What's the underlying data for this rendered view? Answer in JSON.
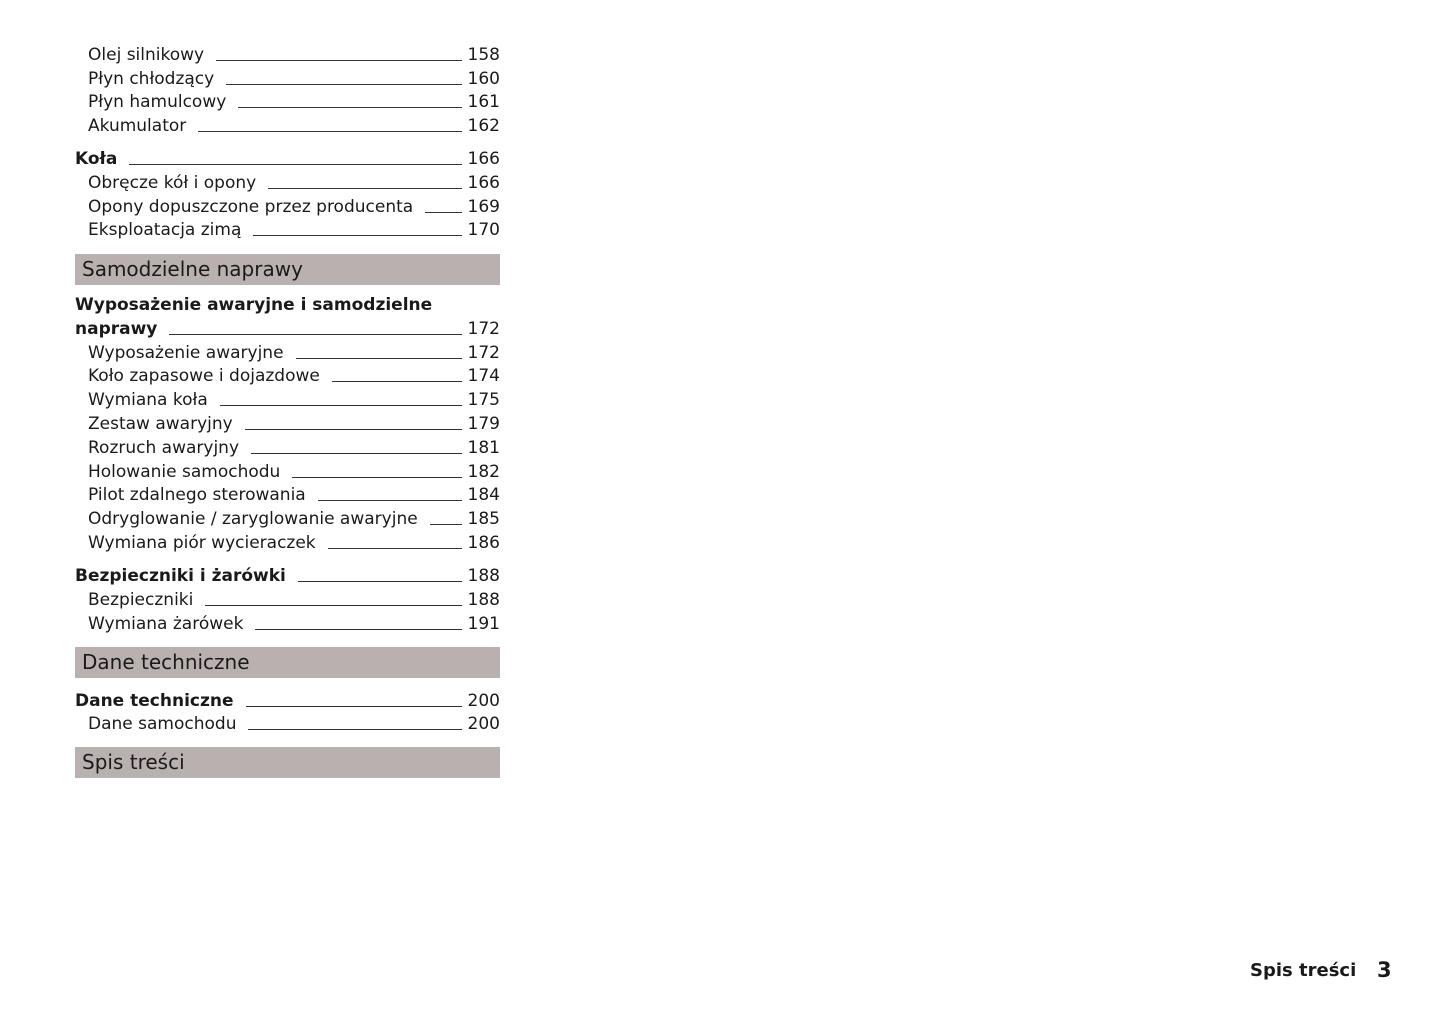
{
  "toc": {
    "e0": {
      "title": "Olej silnikowy",
      "page": "158"
    },
    "e1": {
      "title": "Płyn chłodzący",
      "page": "160"
    },
    "e2": {
      "title": "Płyn hamulcowy",
      "page": "161"
    },
    "e3": {
      "title": "Akumulator",
      "page": "162"
    },
    "e4": {
      "title": "Koła",
      "page": "166"
    },
    "e5": {
      "title": "Obręcze kół i opony",
      "page": "166"
    },
    "e6": {
      "title": "Opony dopuszczone przez producenta",
      "page": "169"
    },
    "e7": {
      "title": "Eksploatacja zimą",
      "page": "170"
    },
    "s1": "Samodzielne naprawy",
    "e8": {
      "title_line1": "Wyposażenie awaryjne i samodzielne",
      "title": "naprawy",
      "page": "172"
    },
    "e9": {
      "title": "Wyposażenie awaryjne",
      "page": "172"
    },
    "e10": {
      "title": "Koło zapasowe i dojazdowe",
      "page": "174"
    },
    "e11": {
      "title": "Wymiana koła",
      "page": "175"
    },
    "e12": {
      "title": "Zestaw awaryjny",
      "page": "179"
    },
    "e13": {
      "title": "Rozruch awaryjny",
      "page": "181"
    },
    "e14": {
      "title": "Holowanie samochodu",
      "page": "182"
    },
    "e15": {
      "title": "Pilot zdalnego sterowania",
      "page": "184"
    },
    "e16": {
      "title": "Odryglowanie / zaryglowanie awaryjne",
      "page": "185"
    },
    "e17": {
      "title": "Wymiana piór wycieraczek",
      "page": "186"
    },
    "e18": {
      "title": "Bezpieczniki i żarówki",
      "page": "188"
    },
    "e19": {
      "title": "Bezpieczniki",
      "page": "188"
    },
    "e20": {
      "title": "Wymiana żarówek",
      "page": "191"
    },
    "s2": "Dane techniczne",
    "e21": {
      "title": "Dane techniczne",
      "page": "200"
    },
    "e22": {
      "title": "Dane samochodu",
      "page": "200"
    },
    "s3": "Spis treści"
  },
  "footer": {
    "section": "Spis treści",
    "page_number": "3"
  },
  "colors": {
    "section_bar": "#b9b1af"
  }
}
